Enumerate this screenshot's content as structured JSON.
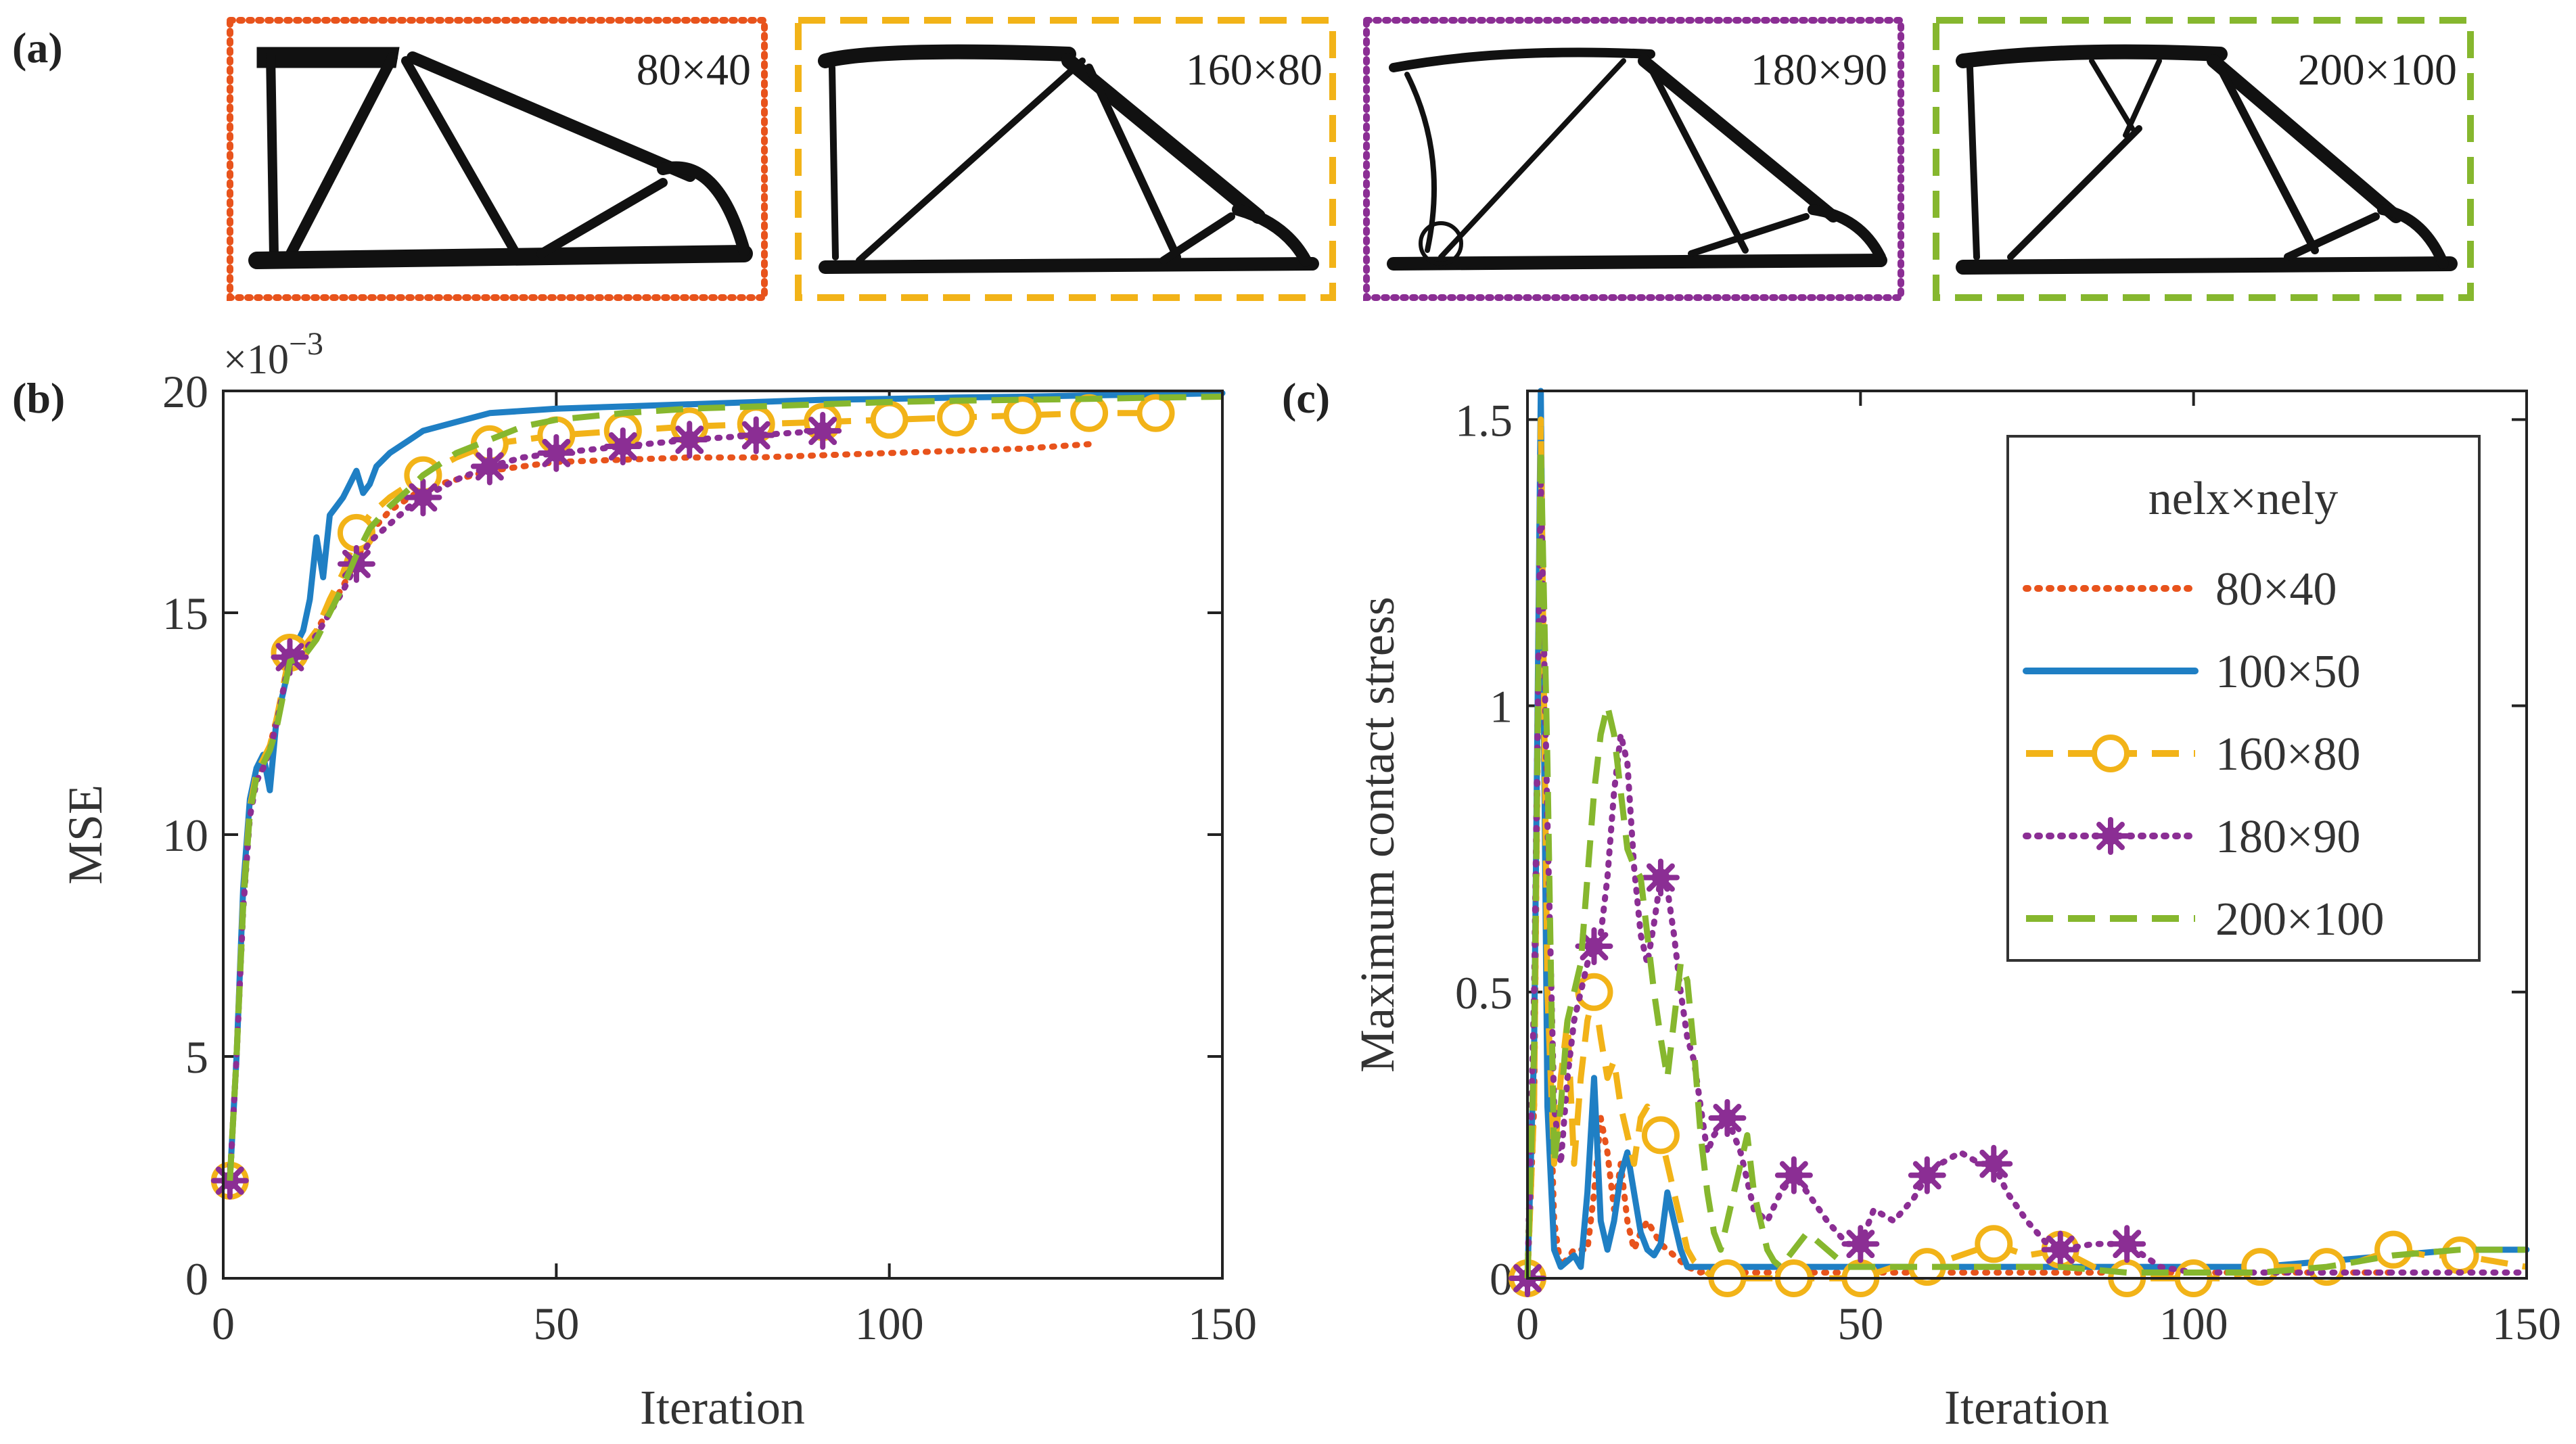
{
  "panel_labels": {
    "a": "(a)",
    "b": "(b)",
    "c": "(c)"
  },
  "colors": {
    "80x40": "#E8531C",
    "100x50": "#1F7FC4",
    "160x80": "#F2B318",
    "180x90": "#8B2E94",
    "200x100": "#86B72E"
  },
  "topologies": [
    {
      "label": "80×40",
      "series": "80x40"
    },
    {
      "label": "160×80",
      "series": "160x80"
    },
    {
      "label": "180×90",
      "series": "180x90"
    },
    {
      "label": "200×100",
      "series": "200x100"
    }
  ],
  "chart_data": [
    {
      "id": "b",
      "type": "line",
      "xlabel": "Iteration",
      "ylabel": "MSE",
      "exponent_label": "×10",
      "exponent_power": "−3",
      "xlim": [
        0,
        150
      ],
      "ylim": [
        0,
        20
      ],
      "xticks": [
        0,
        50,
        100,
        150
      ],
      "yticks": [
        0,
        5,
        10,
        15,
        20
      ],
      "series": [
        {
          "name": "80×40",
          "key": "80x40",
          "style": "dotted",
          "marker": "none",
          "x": [
            1,
            2,
            3,
            4,
            5,
            6,
            7,
            8,
            10,
            12,
            14,
            16,
            18,
            20,
            22,
            25,
            28,
            30,
            35,
            40,
            45,
            50,
            60,
            70,
            80,
            90,
            100,
            110,
            120,
            130
          ],
          "y": [
            2.2,
            5.0,
            8.5,
            10.5,
            11.3,
            11.6,
            12.0,
            12.6,
            13.9,
            14.2,
            14.6,
            15.1,
            15.6,
            16.2,
            16.8,
            17.3,
            17.6,
            17.8,
            18.0,
            18.2,
            18.3,
            18.4,
            18.45,
            18.5,
            18.5,
            18.55,
            18.6,
            18.65,
            18.7,
            18.8
          ]
        },
        {
          "name": "100×50",
          "key": "100x50",
          "style": "solid",
          "marker": "none",
          "x": [
            1,
            2,
            3,
            4,
            5,
            6,
            7,
            8,
            9,
            10,
            11,
            12,
            13,
            14,
            15,
            16,
            17,
            18,
            19,
            20,
            21,
            22,
            23,
            25,
            28,
            30,
            35,
            40,
            45,
            50,
            60,
            70,
            80,
            90,
            100,
            110,
            120,
            130,
            140,
            150
          ],
          "y": [
            2.2,
            5.0,
            8.8,
            10.8,
            11.5,
            11.8,
            11.0,
            12.6,
            13.2,
            13.9,
            14.3,
            14.6,
            15.3,
            16.7,
            15.8,
            17.2,
            17.4,
            17.6,
            17.9,
            18.2,
            17.7,
            17.9,
            18.3,
            18.6,
            18.9,
            19.1,
            19.3,
            19.5,
            19.55,
            19.6,
            19.65,
            19.7,
            19.75,
            19.8,
            19.82,
            19.85,
            19.87,
            19.9,
            19.92,
            19.95
          ]
        },
        {
          "name": "160×80",
          "key": "160x80",
          "style": "dashed",
          "marker": "circle",
          "x": [
            1,
            2,
            3,
            4,
            5,
            6,
            7,
            8,
            10,
            12,
            14,
            16,
            18,
            20,
            22,
            25,
            28,
            30,
            35,
            40,
            45,
            50,
            60,
            70,
            80,
            90,
            100,
            110,
            120,
            130,
            140
          ],
          "y": [
            2.2,
            5.0,
            8.5,
            10.6,
            11.4,
            11.7,
            12.0,
            12.6,
            14.1,
            14.2,
            14.6,
            15.3,
            15.9,
            16.8,
            17.2,
            17.6,
            17.9,
            18.1,
            18.5,
            18.8,
            18.9,
            19.0,
            19.1,
            19.2,
            19.25,
            19.3,
            19.35,
            19.4,
            19.45,
            19.5,
            19.5
          ],
          "marker_x": [
            1,
            10,
            20,
            30,
            40,
            50,
            60,
            70,
            80,
            90,
            100,
            110,
            120,
            130,
            140
          ],
          "marker_y": [
            2.2,
            14.1,
            16.8,
            18.1,
            18.8,
            19.0,
            19.1,
            19.2,
            19.25,
            19.3,
            19.35,
            19.4,
            19.45,
            19.5,
            19.5
          ]
        },
        {
          "name": "180×90",
          "key": "180x90",
          "style": "dotted",
          "marker": "star",
          "x": [
            1,
            2,
            3,
            4,
            5,
            6,
            7,
            8,
            10,
            12,
            14,
            16,
            18,
            20,
            22,
            25,
            28,
            30,
            35,
            40,
            45,
            50,
            60,
            70,
            80,
            90
          ],
          "y": [
            2.2,
            5.0,
            8.3,
            10.4,
            11.2,
            11.5,
            11.9,
            12.5,
            14.0,
            14.1,
            14.5,
            15.0,
            15.5,
            16.1,
            16.6,
            17.0,
            17.4,
            17.6,
            18.0,
            18.3,
            18.5,
            18.6,
            18.75,
            18.9,
            19.0,
            19.1
          ],
          "marker_x": [
            1,
            10,
            20,
            30,
            40,
            50,
            60,
            70,
            80,
            90
          ],
          "marker_y": [
            2.2,
            14.0,
            16.1,
            17.6,
            18.3,
            18.6,
            18.75,
            18.9,
            19.0,
            19.1
          ]
        },
        {
          "name": "200×100",
          "key": "200x100",
          "style": "dashed",
          "marker": "none",
          "x": [
            1,
            2,
            3,
            4,
            5,
            6,
            7,
            8,
            10,
            12,
            14,
            16,
            18,
            20,
            22,
            25,
            28,
            30,
            35,
            40,
            45,
            50,
            60,
            70,
            80,
            90,
            100,
            110,
            120,
            130,
            140,
            150
          ],
          "y": [
            2.2,
            5.0,
            8.4,
            10.5,
            11.3,
            11.6,
            11.9,
            12.4,
            13.9,
            14.0,
            14.4,
            15.0,
            15.6,
            16.3,
            16.9,
            17.4,
            17.8,
            18.1,
            18.6,
            18.9,
            19.2,
            19.35,
            19.5,
            19.6,
            19.65,
            19.7,
            19.75,
            19.78,
            19.8,
            19.82,
            19.85,
            19.87
          ]
        }
      ]
    },
    {
      "id": "c",
      "type": "line",
      "xlabel": "Iteration",
      "ylabel": "Maximum contact stress",
      "xlim": [
        0,
        150
      ],
      "ylim": [
        0,
        1.55
      ],
      "xticks": [
        0,
        50,
        100,
        150
      ],
      "yticks": [
        0,
        0.5,
        1,
        1.5
      ],
      "ytick_labels": [
        "0",
        "0.5",
        "1",
        "1.5"
      ],
      "legend": {
        "title": "nelx×nely",
        "placement": "top-right"
      },
      "series": [
        {
          "name": "80×40",
          "key": "80x40",
          "style": "dotted",
          "marker": "none",
          "x": [
            0,
            1,
            2,
            3,
            4,
            5,
            7,
            9,
            10,
            11,
            12,
            13,
            14,
            15,
            16,
            17,
            18,
            19,
            20,
            22,
            24,
            26,
            28,
            30,
            35,
            40,
            50,
            60,
            70,
            80,
            90,
            100,
            110,
            120,
            130
          ],
          "y": [
            0,
            0.3,
            1.45,
            0.5,
            0.1,
            0.02,
            0.05,
            0.05,
            0.15,
            0.28,
            0.22,
            0.12,
            0.2,
            0.1,
            0.05,
            0.08,
            0.1,
            0.08,
            0.06,
            0.04,
            0.02,
            0.01,
            0.02,
            0.01,
            0.01,
            0.01,
            0.01,
            0.01,
            0.01,
            0.01,
            0.01,
            0.01,
            0.01,
            0.01,
            0.01
          ]
        },
        {
          "name": "100×50",
          "key": "100x50",
          "style": "solid",
          "marker": "none",
          "x": [
            0,
            1,
            2,
            3,
            4,
            5,
            6,
            7,
            8,
            9,
            10,
            11,
            12,
            13,
            14,
            15,
            16,
            17,
            18,
            19,
            20,
            21,
            22,
            23,
            24,
            25,
            30,
            40,
            50,
            60,
            70,
            80,
            90,
            100,
            110,
            120,
            130,
            140,
            150
          ],
          "y": [
            0,
            0.4,
            1.55,
            0.3,
            0.05,
            0.02,
            0.03,
            0.04,
            0.02,
            0.15,
            0.35,
            0.1,
            0.05,
            0.1,
            0.18,
            0.22,
            0.15,
            0.08,
            0.05,
            0.04,
            0.06,
            0.15,
            0.1,
            0.05,
            0.02,
            0.02,
            0.02,
            0.02,
            0.02,
            0.02,
            0.02,
            0.02,
            0.02,
            0.02,
            0.02,
            0.03,
            0.04,
            0.05,
            0.05
          ]
        },
        {
          "name": "160×80",
          "key": "160x80",
          "style": "dashed",
          "marker": "circle",
          "x": [
            0,
            1,
            2,
            3,
            4,
            5,
            6,
            7,
            8,
            9,
            10,
            11,
            12,
            13,
            14,
            15,
            16,
            17,
            18,
            19,
            20,
            21,
            22,
            23,
            24,
            25,
            26,
            28,
            30,
            35,
            40,
            45,
            50,
            55,
            60,
            65,
            70,
            75,
            80,
            85,
            90,
            95,
            100,
            105,
            110,
            115,
            120,
            125,
            130,
            135,
            140,
            145,
            150
          ],
          "y": [
            0,
            0.3,
            1.5,
            0.5,
            0.2,
            0.35,
            0.45,
            0.2,
            0.35,
            0.45,
            0.5,
            0.42,
            0.35,
            0.38,
            0.3,
            0.25,
            0.2,
            0.28,
            0.3,
            0.25,
            0.25,
            0.2,
            0.15,
            0.1,
            0.05,
            0.03,
            0.02,
            0.0,
            0.0,
            0.0,
            0.0,
            0.0,
            0.0,
            0.02,
            0.02,
            0.04,
            0.06,
            0.04,
            0.05,
            0.02,
            0.0,
            0.0,
            0.0,
            0.0,
            0.02,
            0.02,
            0.02,
            0.03,
            0.05,
            0.04,
            0.04,
            0.03,
            0.02
          ],
          "marker_x": [
            0,
            10,
            20,
            30,
            40,
            50,
            60,
            70,
            80,
            90,
            100,
            110,
            120,
            130,
            140
          ],
          "marker_y": [
            0,
            0.5,
            0.25,
            0.0,
            0.0,
            0.0,
            0.02,
            0.06,
            0.05,
            0.0,
            0.0,
            0.02,
            0.02,
            0.05,
            0.04
          ]
        },
        {
          "name": "180×90",
          "key": "180x90",
          "style": "dotted",
          "marker": "star",
          "x": [
            0,
            1,
            2,
            3,
            4,
            5,
            6,
            7,
            8,
            9,
            10,
            11,
            12,
            13,
            14,
            15,
            16,
            17,
            18,
            19,
            20,
            21,
            22,
            23,
            24,
            25,
            26,
            27,
            28,
            30,
            32,
            34,
            36,
            38,
            40,
            42,
            45,
            48,
            50,
            52,
            55,
            58,
            60,
            62,
            65,
            68,
            70,
            72,
            75,
            78,
            80,
            85,
            90,
            95,
            100,
            110,
            120,
            130,
            140,
            150
          ],
          "y": [
            0,
            0.5,
            1.4,
            0.8,
            0.3,
            0.2,
            0.35,
            0.45,
            0.5,
            0.55,
            0.58,
            0.6,
            0.7,
            0.85,
            0.95,
            0.9,
            0.72,
            0.6,
            0.55,
            0.62,
            0.7,
            0.68,
            0.6,
            0.5,
            0.42,
            0.38,
            0.3,
            0.22,
            0.25,
            0.28,
            0.22,
            0.12,
            0.1,
            0.15,
            0.18,
            0.15,
            0.1,
            0.06,
            0.06,
            0.12,
            0.1,
            0.14,
            0.18,
            0.2,
            0.22,
            0.2,
            0.2,
            0.15,
            0.1,
            0.06,
            0.05,
            0.06,
            0.06,
            0.02,
            0.01,
            0.01,
            0.01,
            0.01,
            0.01,
            0.01
          ],
          "marker_x": [
            0,
            10,
            20,
            30,
            40,
            50,
            60,
            70,
            80,
            90
          ],
          "marker_y": [
            0,
            0.58,
            0.7,
            0.28,
            0.18,
            0.06,
            0.18,
            0.2,
            0.05,
            0.06
          ]
        },
        {
          "name": "200×100",
          "key": "200x100",
          "style": "dashed",
          "marker": "none",
          "x": [
            0,
            1,
            2,
            3,
            4,
            5,
            6,
            7,
            8,
            9,
            10,
            11,
            12,
            13,
            14,
            15,
            16,
            17,
            18,
            19,
            20,
            21,
            22,
            23,
            24,
            25,
            26,
            27,
            28,
            29,
            30,
            31,
            32,
            33,
            34,
            35,
            36,
            37,
            38,
            40,
            42,
            45,
            48,
            50,
            55,
            60,
            70,
            80,
            90,
            100,
            110,
            120,
            130,
            140,
            150
          ],
          "y": [
            0,
            0.4,
            1.45,
            0.9,
            0.2,
            0.3,
            0.45,
            0.5,
            0.55,
            0.7,
            0.85,
            0.95,
            1.0,
            0.95,
            0.85,
            0.75,
            0.72,
            0.7,
            0.6,
            0.5,
            0.42,
            0.35,
            0.45,
            0.55,
            0.52,
            0.4,
            0.25,
            0.15,
            0.08,
            0.05,
            0.1,
            0.15,
            0.2,
            0.25,
            0.15,
            0.1,
            0.05,
            0.03,
            0.02,
            0.05,
            0.08,
            0.05,
            0.02,
            0.02,
            0.02,
            0.02,
            0.02,
            0.02,
            0.01,
            0.01,
            0.01,
            0.02,
            0.04,
            0.05,
            0.05
          ]
        }
      ]
    }
  ]
}
